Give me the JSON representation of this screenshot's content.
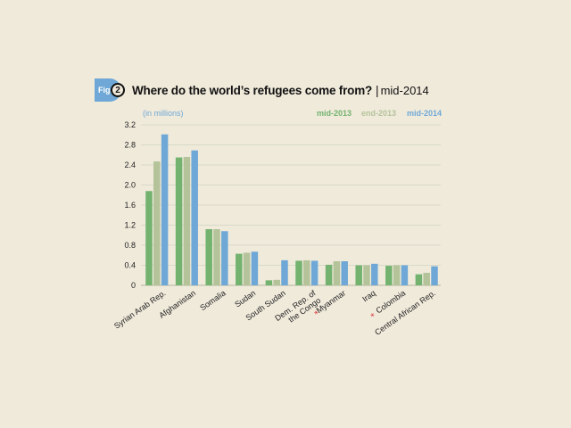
{
  "figure": {
    "badge_label": "Fig.",
    "number": "2",
    "title": "Where do the world’s refugees come from?",
    "separator": "|",
    "subtitle": "mid-2014",
    "unit_note": "(in millions)"
  },
  "chart_data": {
    "type": "bar",
    "title": "Where do the world’s refugees come from?",
    "subtitle": "mid-2014",
    "ylabel": "(in millions)",
    "ylim": [
      0,
      3.2
    ],
    "yticks": [
      "0",
      "0.4",
      "0.8",
      "1.2",
      "1.6",
      "2.0",
      "2.4",
      "2.8",
      "3.2"
    ],
    "grid": true,
    "legend_position": "top-right",
    "categories": [
      {
        "label": "Syrian Arab Rep.",
        "marked": false
      },
      {
        "label": "Afghanistan",
        "marked": false
      },
      {
        "label": "Somalia",
        "marked": false
      },
      {
        "label": "Sudan",
        "marked": false
      },
      {
        "label": "South Sudan",
        "marked": false
      },
      {
        "label": "Dem. Rep. of the Congo",
        "marked": false
      },
      {
        "label": "Myanmar",
        "marked": true
      },
      {
        "label": "Iraq",
        "marked": false
      },
      {
        "label": "Colombia",
        "marked": true
      },
      {
        "label": "Central African Rep.",
        "marked": false
      }
    ],
    "marker_color": "#d7282f",
    "series": [
      {
        "name": "mid-2013",
        "color": "#73b36f",
        "values": [
          1.88,
          2.55,
          1.12,
          0.63,
          0.1,
          0.49,
          0.41,
          0.4,
          0.39,
          0.22
        ]
      },
      {
        "name": "end-2013",
        "color": "#b4c39a",
        "values": [
          2.47,
          2.56,
          1.12,
          0.65,
          0.11,
          0.5,
          0.48,
          0.4,
          0.4,
          0.25
        ]
      },
      {
        "name": "mid-2014",
        "color": "#6fa8d6",
        "values": [
          3.01,
          2.69,
          1.08,
          0.67,
          0.5,
          0.49,
          0.48,
          0.43,
          0.4,
          0.38
        ]
      }
    ]
  }
}
